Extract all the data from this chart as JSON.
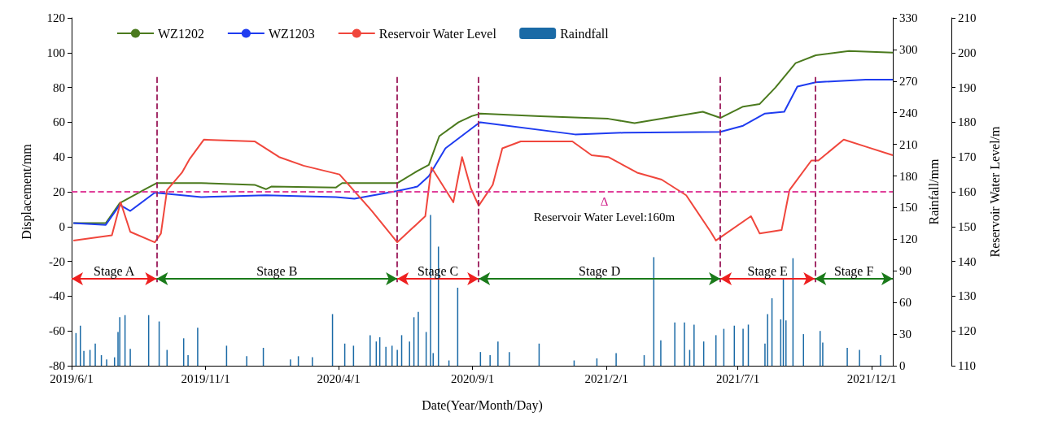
{
  "chart_data": {
    "type": "line",
    "xlabel": "Date(Year/Month/Day)",
    "ylabel": "Displacement/mm",
    "y2label": "Rainfall/mm",
    "y3label": "Reservoir Water Level/m",
    "xlim": [
      "2019-06-01",
      "2021-12-25"
    ],
    "xticks": [
      {
        "value": "2019-06-01",
        "label": "2019/6/1"
      },
      {
        "value": "2019-11-01",
        "label": "2019/11/1"
      },
      {
        "value": "2020-04-01",
        "label": "2020/4/1"
      },
      {
        "value": "2020-09-01",
        "label": "2020/9/1"
      },
      {
        "value": "2021-02-01",
        "label": "2021/2/1"
      },
      {
        "value": "2021-07-01",
        "label": "2021/7/1"
      },
      {
        "value": "2021-12-01",
        "label": "2021/12/1"
      }
    ],
    "ylim": [
      -80,
      120
    ],
    "yticks": [
      -80,
      -60,
      -40,
      -20,
      0,
      20,
      40,
      60,
      80,
      100,
      120
    ],
    "y2lim": [
      0,
      330
    ],
    "y2ticks": [
      0,
      30,
      60,
      90,
      120,
      150,
      180,
      210,
      240,
      270,
      300,
      330
    ],
    "y3lim": [
      110,
      210
    ],
    "y3ticks": [
      110,
      120,
      130,
      140,
      150,
      160,
      170,
      180,
      190,
      200,
      210
    ],
    "legend": "top left",
    "series": [
      {
        "name": "WZ1202",
        "color": "#4b7a1e",
        "x": [
          "2019-06-03",
          "2019-07-10",
          "2019-07-26",
          "2019-08-26",
          "2019-09-06",
          "2019-10-27",
          "2019-12-27",
          "2020-01-09",
          "2020-01-15",
          "2020-03-29",
          "2020-04-05",
          "2020-06-07",
          "2020-06-30",
          "2020-07-13",
          "2020-07-25",
          "2020-08-16",
          "2020-08-31",
          "2020-09-10",
          "2020-11-17",
          "2021-02-03",
          "2021-03-05",
          "2021-05-22",
          "2021-06-11",
          "2021-07-07",
          "2021-07-26",
          "2021-08-13",
          "2021-09-05",
          "2021-09-28",
          "2021-11-05",
          "2021-12-25"
        ],
        "values": [
          2,
          2,
          13.5,
          22,
          25,
          25,
          24,
          21.5,
          23,
          22.5,
          25,
          25,
          32,
          35.5,
          52,
          60,
          63.5,
          65,
          63.5,
          62,
          59.5,
          66,
          62.5,
          69,
          70.5,
          80,
          94,
          98.5,
          101,
          100
        ]
      },
      {
        "name": "WZ1203",
        "color": "#1f3cf0",
        "x": [
          "2019-06-03",
          "2019-07-10",
          "2019-07-26",
          "2019-08-07",
          "2019-09-04",
          "2019-10-27",
          "2020-01-09",
          "2020-03-29",
          "2020-04-19",
          "2020-06-07",
          "2020-06-30",
          "2020-07-13",
          "2020-08-01",
          "2020-09-08",
          "2020-09-10",
          "2020-12-27",
          "2021-02-21",
          "2021-06-11",
          "2021-07-07",
          "2021-08-01",
          "2021-08-23",
          "2021-09-07",
          "2021-09-28",
          "2021-11-24",
          "2021-12-25"
        ],
        "values": [
          2,
          1,
          12.5,
          9,
          19.5,
          17,
          18,
          17,
          16,
          20.5,
          23,
          29,
          45,
          59.5,
          60,
          53,
          54,
          54.5,
          58,
          65,
          66,
          80.5,
          83,
          84.5,
          84.5
        ]
      },
      {
        "name": "Reservoir Water Level",
        "axis": "y3",
        "color": "#f0463c",
        "x": [
          "2019-06-03",
          "2019-07-17",
          "2019-07-27",
          "2019-08-07",
          "2019-09-04",
          "2019-09-11",
          "2019-09-18",
          "2019-10-05",
          "2019-10-14",
          "2019-10-30",
          "2019-12-27",
          "2020-01-24",
          "2020-02-21",
          "2020-04-02",
          "2020-05-09",
          "2020-06-07",
          "2020-07-09",
          "2020-07-16",
          "2020-08-10",
          "2020-08-20",
          "2020-08-30",
          "2020-09-08",
          "2020-09-24",
          "2020-10-05",
          "2020-10-26",
          "2020-12-24",
          "2021-01-15",
          "2021-02-03",
          "2021-03-08",
          "2021-04-05",
          "2021-05-03",
          "2021-05-31",
          "2021-06-06",
          "2021-07-16",
          "2021-07-26",
          "2021-08-20",
          "2021-08-29",
          "2021-09-23",
          "2021-10-01",
          "2021-10-30",
          "2021-11-24",
          "2021-12-25"
        ],
        "values": [
          146,
          147.5,
          157,
          148.5,
          145.5,
          148,
          160.5,
          165.5,
          169.5,
          175,
          174.5,
          170,
          167.5,
          165,
          154.5,
          145.5,
          153,
          167,
          157,
          170,
          161,
          156,
          162,
          172.5,
          174.5,
          174.5,
          170.5,
          170,
          165.5,
          163.5,
          159,
          148.5,
          146,
          153,
          148,
          149,
          160.5,
          169,
          169,
          175,
          173,
          170.5
        ]
      },
      {
        "name": "Raindfall",
        "type": "bar",
        "axis": "y2",
        "color": "#1a6aa6",
        "x": [
          "2019-06-06",
          "2019-06-11",
          "2019-06-15",
          "2019-06-22",
          "2019-06-28",
          "2019-07-05",
          "2019-07-11",
          "2019-07-20",
          "2019-07-24",
          "2019-07-26",
          "2019-08-01",
          "2019-08-07",
          "2019-08-28",
          "2019-09-09",
          "2019-09-18",
          "2019-10-07",
          "2019-10-12",
          "2019-10-23",
          "2019-11-25",
          "2019-12-18",
          "2020-01-06",
          "2020-02-06",
          "2020-02-15",
          "2020-03-02",
          "2020-03-25",
          "2020-04-08",
          "2020-04-18",
          "2020-05-07",
          "2020-05-14",
          "2020-05-18",
          "2020-05-25",
          "2020-06-01",
          "2020-06-07",
          "2020-06-12",
          "2020-06-21",
          "2020-06-26",
          "2020-07-01",
          "2020-07-10",
          "2020-07-15",
          "2020-07-18",
          "2020-07-24",
          "2020-08-05",
          "2020-08-15",
          "2020-09-10",
          "2020-09-21",
          "2020-09-30",
          "2020-10-13",
          "2020-11-16",
          "2020-12-26",
          "2021-01-21",
          "2021-02-12",
          "2021-03-16",
          "2021-03-27",
          "2021-04-04",
          "2021-04-20",
          "2021-05-01",
          "2021-05-07",
          "2021-05-12",
          "2021-05-23",
          "2021-06-06",
          "2021-06-15",
          "2021-06-27",
          "2021-07-07",
          "2021-07-13",
          "2021-08-01",
          "2021-08-04",
          "2021-08-09",
          "2021-08-19",
          "2021-08-22",
          "2021-08-25",
          "2021-09-02",
          "2021-09-14",
          "2021-10-03",
          "2021-10-06",
          "2021-11-03",
          "2021-11-17",
          "2021-12-11"
        ],
        "values": [
          31,
          38,
          14,
          15,
          21,
          10,
          6,
          8,
          32,
          46,
          48,
          16,
          48,
          42,
          15,
          26,
          10,
          36,
          19,
          9,
          17,
          6,
          9,
          8,
          49,
          21,
          19,
          29,
          23,
          27,
          18,
          19,
          15,
          29,
          23,
          46,
          51,
          32,
          143,
          12,
          113,
          5,
          74,
          13,
          10,
          23,
          13,
          21,
          5,
          7,
          12,
          10,
          103,
          24,
          41,
          41,
          15,
          39,
          23,
          29,
          35,
          38,
          35,
          39,
          21,
          49,
          64,
          44,
          82,
          43,
          102,
          30,
          33,
          22,
          17,
          15,
          10
        ]
      }
    ],
    "ref_lines": [
      {
        "axis": "x",
        "value": "2019-09-06",
        "color": "#9b1a5a",
        "line_style": "dashed"
      },
      {
        "axis": "x",
        "value": "2020-06-07",
        "color": "#9b1a5a",
        "line_style": "dashed"
      },
      {
        "axis": "x",
        "value": "2020-09-08",
        "color": "#9b1a5a",
        "line_style": "dashed"
      },
      {
        "axis": "x",
        "value": "2021-06-11",
        "color": "#9b1a5a",
        "line_style": "dashed"
      },
      {
        "axis": "x",
        "value": "2021-09-27",
        "color": "#9b1a5a",
        "line_style": "dashed"
      },
      {
        "axis": "y3",
        "value": 160,
        "label": "Reservoir Water Level:160m",
        "color": "#e0409a",
        "line_style": "dashed"
      }
    ],
    "annotations": [
      "Stage A",
      "Stage B",
      "Stage C",
      "Stage D",
      "Stage E",
      "Stage F",
      "Δ"
    ]
  }
}
